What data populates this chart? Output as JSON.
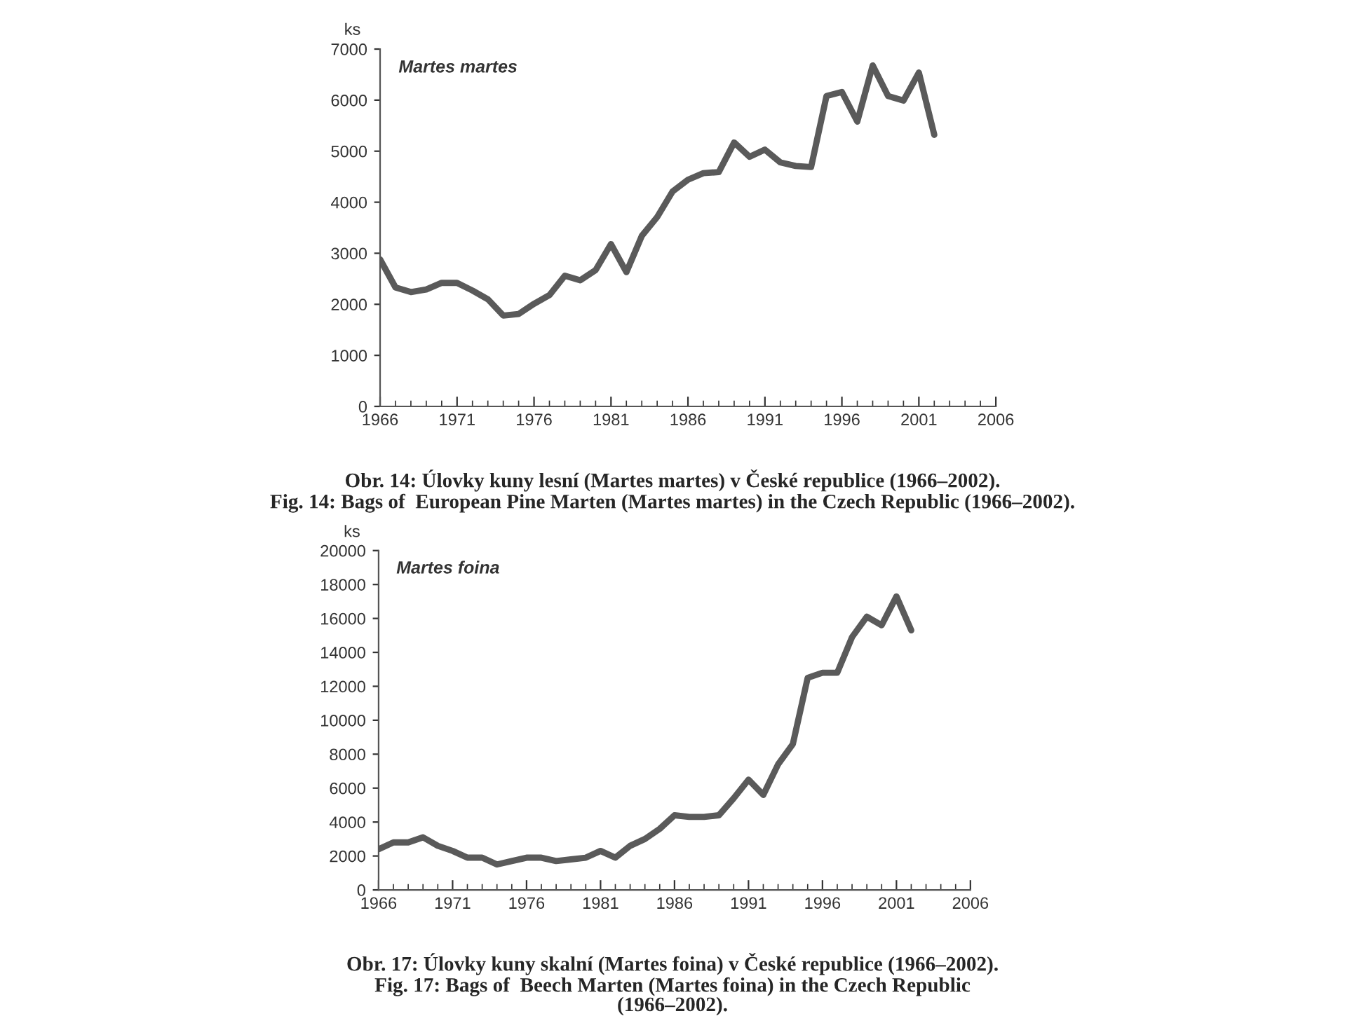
{
  "chart_data": [
    {
      "type": "line",
      "title": "Martes martes",
      "ylabel": "ks",
      "xlim": [
        1966,
        2006
      ],
      "xticks": [
        1966,
        1971,
        1976,
        1981,
        1986,
        1991,
        1996,
        2001,
        2006
      ],
      "ylim": [
        0,
        7000
      ],
      "yticks": [
        0,
        1000,
        2000,
        3000,
        4000,
        5000,
        6000,
        7000
      ],
      "grid": false,
      "x": [
        1966,
        1967,
        1968,
        1969,
        1970,
        1971,
        1972,
        1973,
        1974,
        1975,
        1976,
        1977,
        1978,
        1979,
        1980,
        1981,
        1982,
        1983,
        1984,
        1985,
        1986,
        1987,
        1988,
        1989,
        1990,
        1991,
        1992,
        1993,
        1994,
        1995,
        1996,
        1997,
        1998,
        1999,
        2000,
        2001,
        2002
      ],
      "series": [
        {
          "color": "#5a5a5a",
          "values": [
            2880,
            2330,
            2240,
            2290,
            2420,
            2420,
            2270,
            2100,
            1780,
            1810,
            2010,
            2180,
            2560,
            2470,
            2670,
            3180,
            2630,
            3340,
            3710,
            4210,
            4440,
            4570,
            4590,
            5170,
            4890,
            5030,
            4780,
            4710,
            4690,
            6080,
            6160,
            5580,
            6680,
            6080,
            5990,
            6540,
            5320
          ]
        }
      ],
      "annotations": [
        "Obr. 14: Úlovky kuny lesní (Martes martes) v České republice (1966–2002).",
        "Fig. 14: Bags of  European Pine Marten (Martes martes) in the Czech Republic (1966–2002)."
      ]
    },
    {
      "type": "line",
      "title": "Martes foina",
      "ylabel": "ks",
      "xlim": [
        1966,
        2006
      ],
      "xticks": [
        1966,
        1971,
        1976,
        1981,
        1986,
        1991,
        1996,
        2001,
        2006
      ],
      "ylim": [
        0,
        20000
      ],
      "yticks": [
        0,
        2000,
        4000,
        6000,
        8000,
        10000,
        12000,
        14000,
        16000,
        18000,
        20000
      ],
      "grid": false,
      "x": [
        1966,
        1967,
        1968,
        1969,
        1970,
        1971,
        1972,
        1973,
        1974,
        1975,
        1976,
        1977,
        1978,
        1979,
        1980,
        1981,
        1982,
        1983,
        1984,
        1985,
        1986,
        1987,
        1988,
        1989,
        1990,
        1991,
        1992,
        1993,
        1994,
        1995,
        1996,
        1997,
        1998,
        1999,
        2000,
        2001,
        2002
      ],
      "series": [
        {
          "color": "#5a5a5a",
          "values": [
            2400,
            2800,
            2800,
            3100,
            2600,
            2300,
            1900,
            1900,
            1500,
            1700,
            1900,
            1900,
            1700,
            1800,
            1900,
            2300,
            1900,
            2600,
            3000,
            3600,
            4400,
            4300,
            4300,
            4400,
            5400,
            6500,
            5600,
            7400,
            8600,
            12500,
            12800,
            12800,
            14900,
            16100,
            15600,
            17300,
            15300
          ]
        }
      ],
      "annotations": [
        "Obr. 17: Úlovky kuny skalní (Martes foina) v České republice (1966–2002).",
        "Fig. 17: Bags of  Beech Marten (Martes foina) in the Czech Republic\n(1966–2002)."
      ]
    }
  ]
}
